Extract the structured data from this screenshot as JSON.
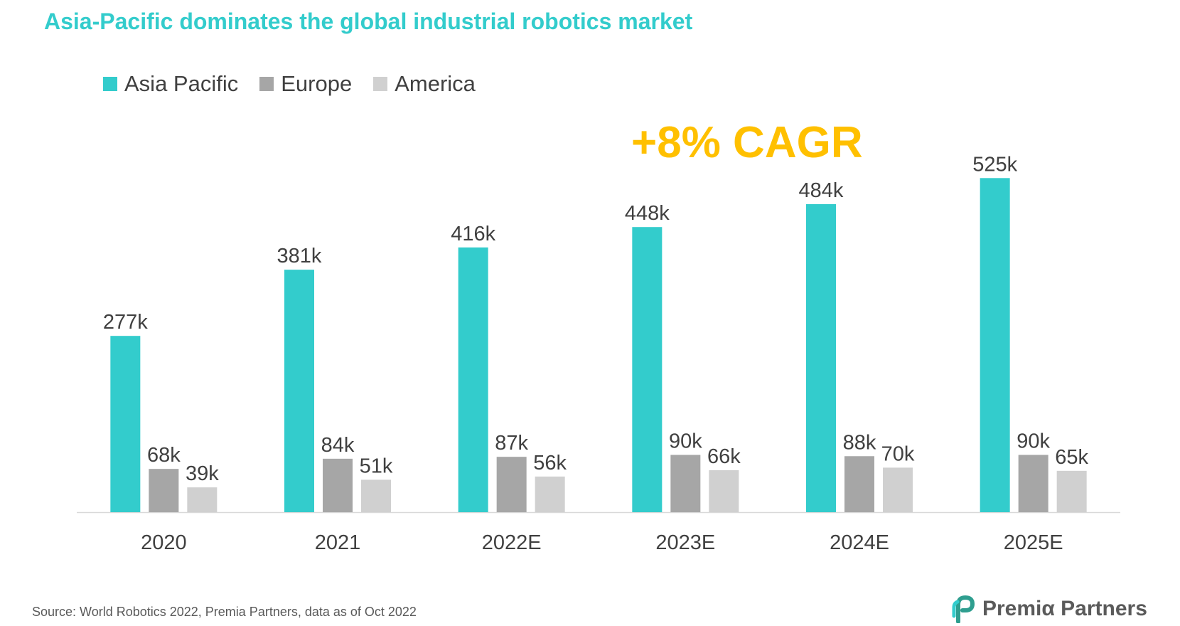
{
  "header": {
    "title": "Asia-Pacific dominates the global industrial robotics market"
  },
  "annotation": {
    "text": "+8% CAGR",
    "color": "#ffc000"
  },
  "footer": {
    "source": "Source: World Robotics 2022, Premia Partners, data as of Oct 2022",
    "logo_text": "Premiα Partners"
  },
  "chart_data": {
    "type": "bar",
    "title": "Asia-Pacific dominates the global industrial robotics market",
    "xlabel": "",
    "ylabel": "",
    "ylim": [
      0,
      600
    ],
    "grid": false,
    "legend_position": "top-left",
    "categories": [
      "2020",
      "2021",
      "2022E",
      "2023E",
      "2024E",
      "2025E"
    ],
    "series": [
      {
        "name": "Asia Pacific",
        "color": "#33cccc",
        "values": [
          277,
          381,
          416,
          448,
          484,
          525
        ],
        "labels": [
          "277k",
          "381k",
          "416k",
          "448k",
          "484k",
          "525k"
        ]
      },
      {
        "name": "Europe",
        "color": "#a6a6a6",
        "values": [
          68,
          84,
          87,
          90,
          88,
          90
        ],
        "labels": [
          "68k",
          "84k",
          "87k",
          "90k",
          "88k",
          "90k"
        ]
      },
      {
        "name": "America",
        "color": "#d0d0d0",
        "values": [
          39,
          51,
          56,
          66,
          70,
          65
        ],
        "labels": [
          "39k",
          "51k",
          "56k",
          "66k",
          "70k",
          "65k"
        ]
      }
    ]
  }
}
